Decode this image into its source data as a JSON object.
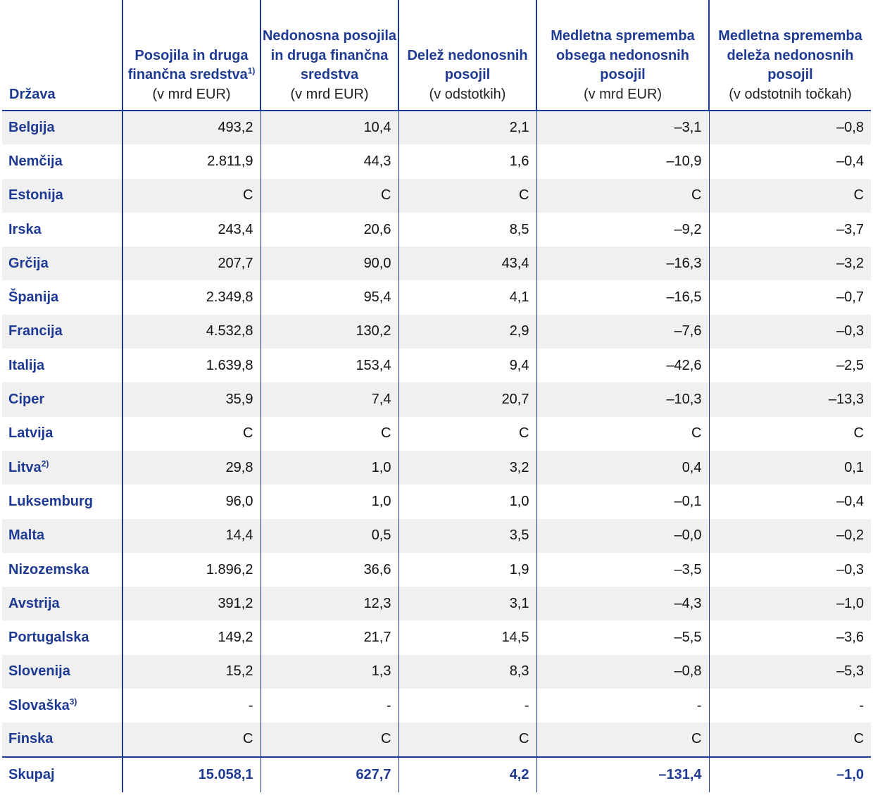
{
  "header": {
    "country": "Država",
    "col1_title": "Posojila in druga finančna sredstva",
    "col1_sup": "1)",
    "col1_unit": "(v mrd EUR)",
    "col2_title": "Nedonosna posojila in druga finančna sredstva",
    "col2_unit": "(v mrd EUR)",
    "col3_title": "Delež nedonosnih posojil",
    "col3_unit": "(v odstotkih)",
    "col4_title": "Medletna sprememba obsega nedonosnih posojil",
    "col4_unit": "(v mrd EUR)",
    "col5_title": "Medletna sprememba deleža nedonosnih posojil",
    "col5_unit": "(v odstotnih točkah)"
  },
  "rows": [
    {
      "country": "Belgija",
      "sup": "",
      "v1": "493,2",
      "v2": "10,4",
      "v3": "2,1",
      "v4": "–3,1",
      "v5": "–0,8"
    },
    {
      "country": "Nemčija",
      "sup": "",
      "v1": "2.811,9",
      "v2": "44,3",
      "v3": "1,6",
      "v4": "–10,9",
      "v5": "–0,4"
    },
    {
      "country": "Estonija",
      "sup": "",
      "v1": "C",
      "v2": "C",
      "v3": "C",
      "v4": "C",
      "v5": "C"
    },
    {
      "country": "Irska",
      "sup": "",
      "v1": "243,4",
      "v2": "20,6",
      "v3": "8,5",
      "v4": "–9,2",
      "v5": "–3,7"
    },
    {
      "country": "Grčija",
      "sup": "",
      "v1": "207,7",
      "v2": "90,0",
      "v3": "43,4",
      "v4": "–16,3",
      "v5": "–3,2"
    },
    {
      "country": "Španija",
      "sup": "",
      "v1": "2.349,8",
      "v2": "95,4",
      "v3": "4,1",
      "v4": "–16,5",
      "v5": "–0,7"
    },
    {
      "country": "Francija",
      "sup": "",
      "v1": "4.532,8",
      "v2": "130,2",
      "v3": "2,9",
      "v4": "–7,6",
      "v5": "–0,3"
    },
    {
      "country": "Italija",
      "sup": "",
      "v1": "1.639,8",
      "v2": "153,4",
      "v3": "9,4",
      "v4": "–42,6",
      "v5": "–2,5"
    },
    {
      "country": "Ciper",
      "sup": "",
      "v1": "35,9",
      "v2": "7,4",
      "v3": "20,7",
      "v4": "–10,3",
      "v5": "–13,3"
    },
    {
      "country": "Latvija",
      "sup": "",
      "v1": "C",
      "v2": "C",
      "v3": "C",
      "v4": "C",
      "v5": "C"
    },
    {
      "country": "Litva",
      "sup": "2)",
      "v1": "29,8",
      "v2": "1,0",
      "v3": "3,2",
      "v4": "0,4",
      "v5": "0,1"
    },
    {
      "country": "Luksemburg",
      "sup": "",
      "v1": "96,0",
      "v2": "1,0",
      "v3": "1,0",
      "v4": "–0,1",
      "v5": "–0,4"
    },
    {
      "country": "Malta",
      "sup": "",
      "v1": "14,4",
      "v2": "0,5",
      "v3": "3,5",
      "v4": "–0,0",
      "v5": "–0,2"
    },
    {
      "country": "Nizozemska",
      "sup": "",
      "v1": "1.896,2",
      "v2": "36,6",
      "v3": "1,9",
      "v4": "–3,5",
      "v5": "–0,3"
    },
    {
      "country": "Avstrija",
      "sup": "",
      "v1": "391,2",
      "v2": "12,3",
      "v3": "3,1",
      "v4": "–4,3",
      "v5": "–1,0"
    },
    {
      "country": "Portugalska",
      "sup": "",
      "v1": "149,2",
      "v2": "21,7",
      "v3": "14,5",
      "v4": "–5,5",
      "v5": "–3,6"
    },
    {
      "country": "Slovenija",
      "sup": "",
      "v1": "15,2",
      "v2": "1,3",
      "v3": "8,3",
      "v4": "–0,8",
      "v5": "–5,3"
    },
    {
      "country": "Slovaška",
      "sup": "3)",
      "v1": "-",
      "v2": "-",
      "v3": "-",
      "v4": "-",
      "v5": "-"
    },
    {
      "country": "Finska",
      "sup": "",
      "v1": "C",
      "v2": "C",
      "v3": "C",
      "v4": "C",
      "v5": "C"
    }
  ],
  "total": {
    "country": "Skupaj",
    "v1": "15.058,1",
    "v2": "627,7",
    "v3": "4,2",
    "v4": "–131,4",
    "v5": "–1,0"
  },
  "colors": {
    "accent": "#1f3a93",
    "row_shade": "#f0f0f0"
  }
}
